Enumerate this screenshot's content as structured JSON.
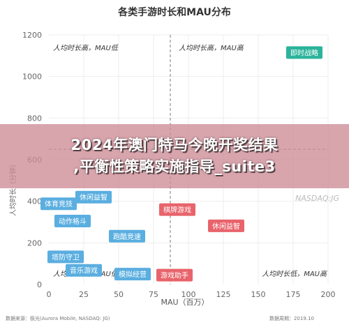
{
  "chart_data": {
    "type": "scatter",
    "title": "各类手游时长和MAU分布",
    "xlabel": "MAU（百万）",
    "ylabel": "人均时长（分钟）",
    "xlim": [
      0,
      200
    ],
    "ylim": [
      0,
      1200
    ],
    "x_ticks": [
      0,
      25,
      50,
      75,
      100,
      125,
      150,
      175,
      200
    ],
    "y_ticks": [
      0,
      200,
      400,
      600,
      800,
      1000,
      1200
    ],
    "divider": {
      "x": 87,
      "y": 650
    },
    "quadrant_labels": [
      "人均时长高，MAU低",
      "人均时长高，MAU高",
      "人均时长低，MAU低",
      "人均时长低，MAU高"
    ],
    "points": [
      {
        "label": "即时战略",
        "x": 183,
        "y": 1115,
        "color": "#2bb49b"
      },
      {
        "label": "体育竞技",
        "x": 7,
        "y": 388,
        "color": "#5aaee0"
      },
      {
        "label": "动作格斗",
        "x": 17,
        "y": 305,
        "color": "#5aaee0"
      },
      {
        "label": "休闲益智",
        "x": 32,
        "y": 420,
        "color": "#5aaee0"
      },
      {
        "label": "跑酷竞速",
        "x": 56,
        "y": 232,
        "color": "#5aaee0"
      },
      {
        "label": "塔防守卫",
        "x": 12,
        "y": 133,
        "color": "#5aaee0"
      },
      {
        "label": "音乐游戏",
        "x": 25,
        "y": 68,
        "color": "#5aaee0"
      },
      {
        "label": "模拟经营",
        "x": 60,
        "y": 50,
        "color": "#5aaee0"
      },
      {
        "label": "棋牌游戏",
        "x": 92,
        "y": 360,
        "color": "#e8636b"
      },
      {
        "label": "休闲益智",
        "x": 127,
        "y": 282,
        "color": "#e8636b"
      },
      {
        "label": "游戏助手",
        "x": 90,
        "y": 45,
        "color": "#e8636b"
      }
    ]
  },
  "footer": {
    "source": "数据来源：极光(Aurora Mobile, NASDAQ: JG)",
    "period": "数据周期：2019.10"
  },
  "watermark": "NASDAQ:JG",
  "overlay": {
    "line1": "2024年澳门特马今晚开奖结果",
    "line2": ",平衡性策略实施指导_suite3"
  },
  "colors": {
    "red": "#e8636b",
    "blue": "#5aaee0",
    "teal": "#2bb49b",
    "divider": "#7a7a7a"
  }
}
